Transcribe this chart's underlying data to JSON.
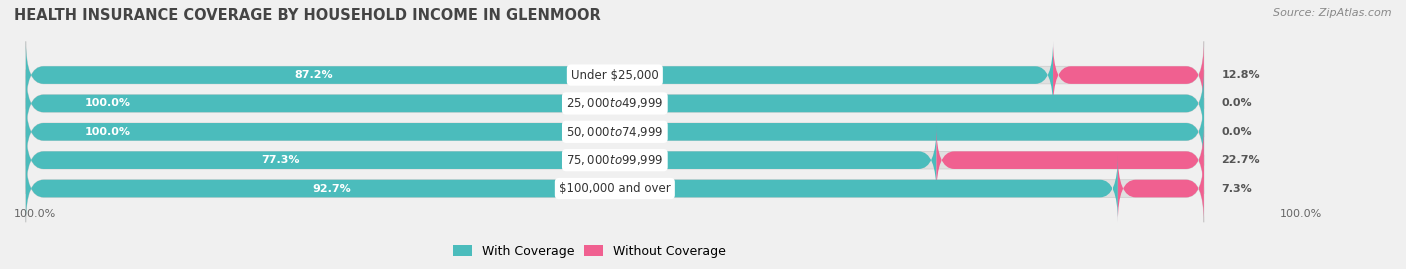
{
  "title": "HEALTH INSURANCE COVERAGE BY HOUSEHOLD INCOME IN GLENMOOR",
  "source": "Source: ZipAtlas.com",
  "categories": [
    "Under $25,000",
    "$25,000 to $49,999",
    "$50,000 to $74,999",
    "$75,000 to $99,999",
    "$100,000 and over"
  ],
  "with_coverage": [
    87.2,
    100.0,
    100.0,
    77.3,
    92.7
  ],
  "without_coverage": [
    12.8,
    0.0,
    0.0,
    22.7,
    7.3
  ],
  "color_coverage": "#4BBCBC",
  "color_no_coverage": "#F06090",
  "color_no_coverage_light": "#F5A0C0",
  "bg_color": "#f0f0f0",
  "bar_bg_color": "#e0e0e0",
  "label_pct_color_left": "white",
  "label_pct_color_right": "white",
  "legend_labels": [
    "With Coverage",
    "Without Coverage"
  ],
  "bottom_left_label": "100.0%",
  "bottom_right_label": "100.0%"
}
